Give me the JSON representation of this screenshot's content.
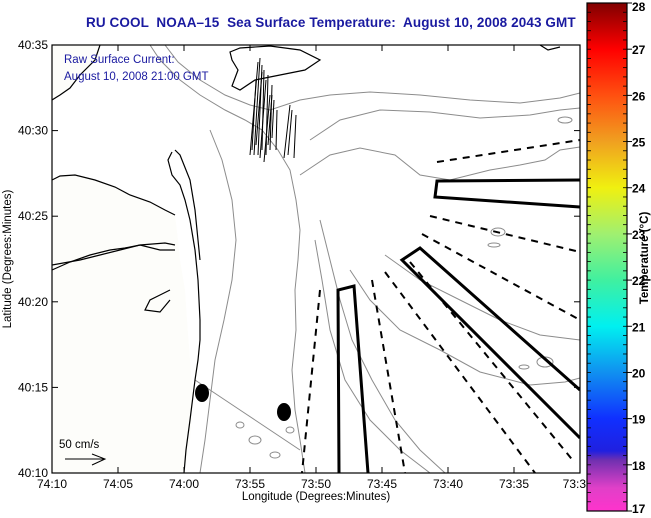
{
  "title": "RU COOL  NOAA–15  Sea Surface Temperature:  August 10, 2008 2043 GMT",
  "annotations": {
    "current_label": "Raw Surface Current:",
    "current_time": "August 10, 2008 21:00 GMT",
    "scale_label": "50 cm/s"
  },
  "map": {
    "xlabel": "Longitude (Degrees:Minutes)",
    "ylabel": "Latitude (Degrees:Minutes)",
    "x_ticks": [
      "74:10",
      "74:05",
      "74:00",
      "73:55",
      "73:50",
      "73:45",
      "73:40",
      "73:35",
      "73:3"
    ],
    "y_ticks": [
      "40:35",
      "40:30",
      "40:25",
      "40:20",
      "40:15",
      "40:10"
    ],
    "land_color": "#fdfdfa",
    "coast_color": "#000000",
    "bathymetry_color": "#8c8c8c"
  },
  "colorbar": {
    "label": "Temperature (°C)",
    "min": 17,
    "max": 28,
    "ticks": [
      "17",
      "18",
      "19",
      "20",
      "21",
      "22",
      "23",
      "24",
      "25",
      "26",
      "27",
      "28"
    ],
    "stops": [
      {
        "value": 17,
        "color": "#ff33cc"
      },
      {
        "value": 17.5,
        "color": "#e040c8"
      },
      {
        "value": 18.1,
        "color": "#7030b0"
      },
      {
        "value": 18.3,
        "color": "#2020e0"
      },
      {
        "value": 19,
        "color": "#1030ff"
      },
      {
        "value": 20,
        "color": "#1090f0"
      },
      {
        "value": 21,
        "color": "#00f0f0"
      },
      {
        "value": 22,
        "color": "#40f0a0"
      },
      {
        "value": 23,
        "color": "#a0f070"
      },
      {
        "value": 24,
        "color": "#f0f010"
      },
      {
        "value": 25,
        "color": "#f0a020"
      },
      {
        "value": 26,
        "color": "#ff5010"
      },
      {
        "value": 27,
        "color": "#ff0000"
      },
      {
        "value": 28,
        "color": "#800000"
      }
    ]
  }
}
